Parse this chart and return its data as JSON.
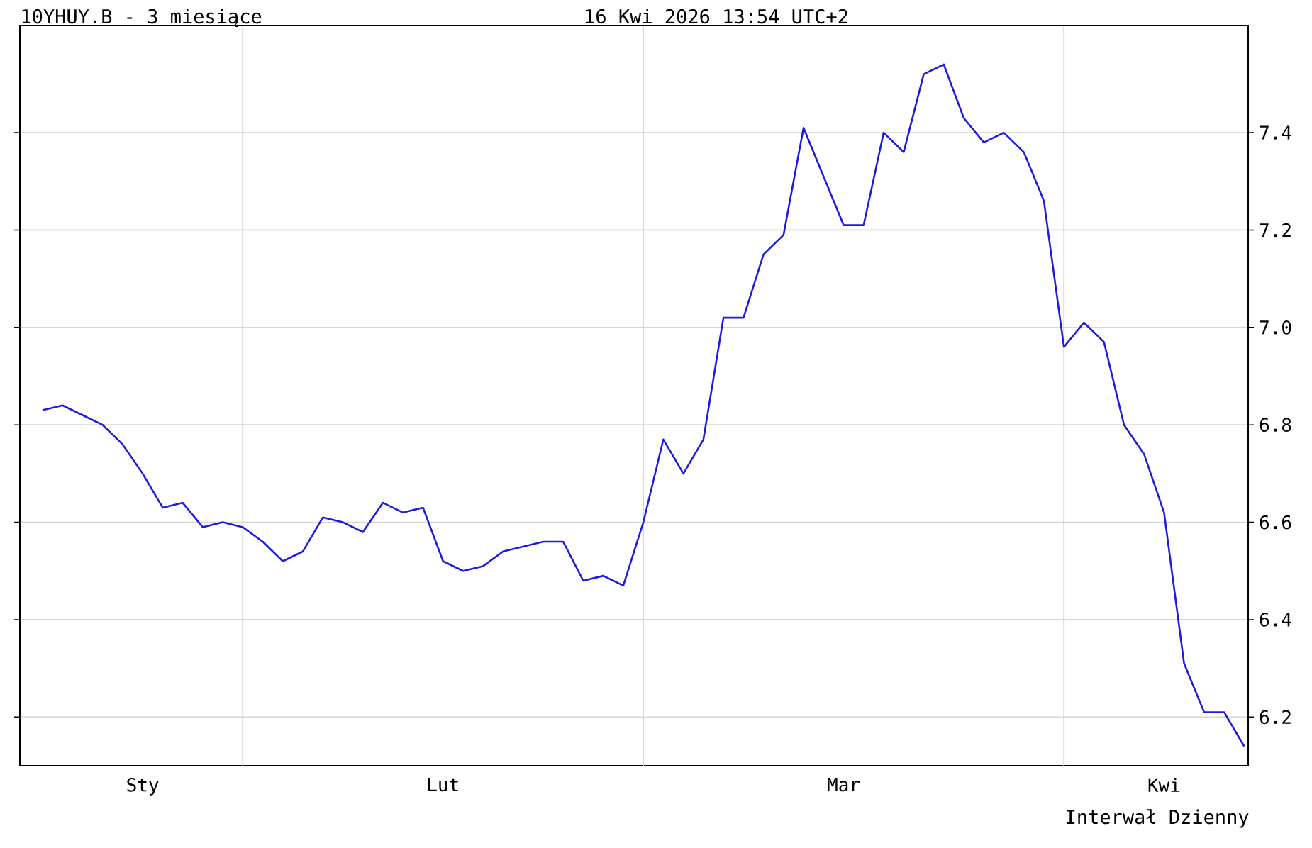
{
  "chart_data": {
    "type": "line",
    "title": "10YHUY.B - 3 miesiące",
    "subtitle": "16 Kwi 2026 13:54 UTC+2",
    "annotations": [
      "Interwał Dzienny"
    ],
    "categories": [
      null,
      null,
      null,
      null,
      null,
      "Sty",
      null,
      null,
      null,
      null,
      null,
      null,
      null,
      null,
      null,
      null,
      null,
      null,
      null,
      null,
      "Lut",
      null,
      null,
      null,
      null,
      null,
      null,
      null,
      null,
      null,
      null,
      null,
      null,
      null,
      null,
      null,
      null,
      null,
      null,
      null,
      "Mar",
      null,
      null,
      null,
      null,
      null,
      null,
      null,
      null,
      null,
      null,
      null,
      null,
      null,
      null,
      null,
      "Kwi",
      null,
      null,
      null,
      null
    ],
    "values": [
      6.83,
      6.84,
      6.82,
      6.8,
      6.76,
      6.7,
      6.63,
      6.64,
      6.59,
      6.6,
      6.59,
      6.56,
      6.52,
      6.54,
      6.61,
      6.6,
      6.58,
      6.64,
      6.62,
      6.63,
      6.52,
      6.5,
      6.51,
      6.54,
      6.55,
      6.56,
      6.56,
      6.48,
      6.49,
      6.47,
      6.6,
      6.77,
      6.7,
      6.77,
      7.02,
      7.02,
      7.15,
      7.19,
      7.41,
      7.31,
      7.21,
      7.21,
      7.4,
      7.36,
      7.52,
      7.54,
      7.43,
      7.38,
      7.4,
      7.36,
      7.26,
      6.96,
      7.01,
      6.97,
      6.8,
      6.74,
      6.62,
      6.31,
      6.21,
      6.21,
      6.14
    ],
    "color": "#1c1ce0",
    "ylim": [
      6.1,
      7.62
    ],
    "yticks": [
      6.2,
      6.4,
      6.6,
      6.8,
      {
        "value": 7.0,
        "label": "7.0"
      },
      7.2,
      7.4
    ],
    "grid": true,
    "marker": "none",
    "line_style": "solid"
  }
}
